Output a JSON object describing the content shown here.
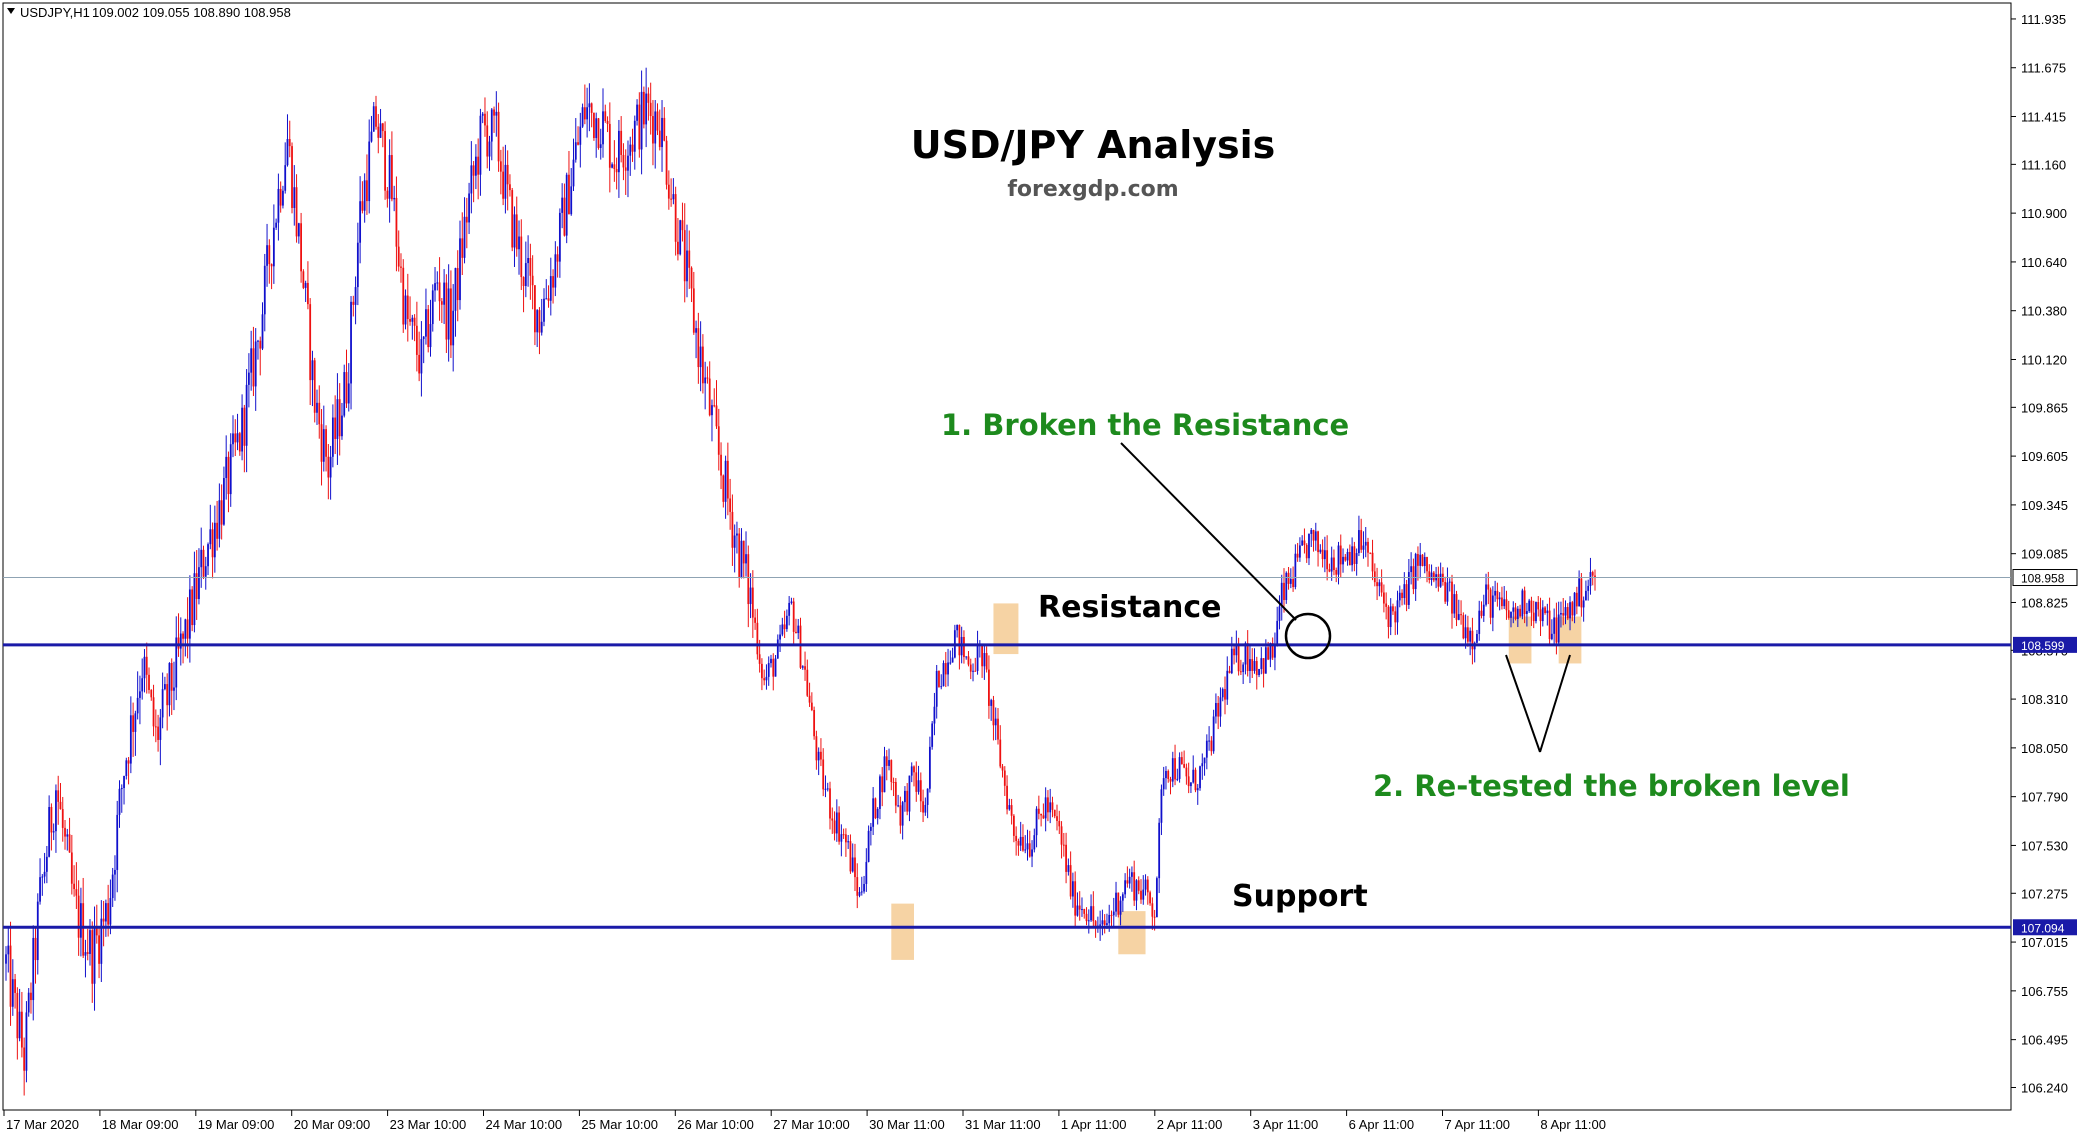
{
  "header": {
    "symbol_text": "USDJPY,H1",
    "ohlc_text": "109.002 109.055 108.890 108.958"
  },
  "annotations": {
    "title": "USD/JPY Analysis",
    "subtitle": "forexgdp.com",
    "resistance_label": "Resistance",
    "support_label": "Support",
    "broken_label": "1. Broken the Resistance",
    "retest_label": "2. Re-tested the broken level"
  },
  "colors": {
    "bull": "#1010cc",
    "bear": "#ee1111",
    "level_line": "#1a1aa8",
    "highlight": "#f6d3a4",
    "annot_green": "#1d8a1d",
    "grid_frame": "#000000"
  },
  "chart_data": {
    "type": "candlestick",
    "symbol": "USDJPY",
    "timeframe": "H1",
    "ylim": [
      106.12,
      112.02
    ],
    "y_ticks": [
      "111.935",
      "111.675",
      "111.415",
      "111.160",
      "110.900",
      "110.640",
      "110.380",
      "110.120",
      "109.865",
      "109.605",
      "109.345",
      "109.085",
      "108.825",
      "108.570",
      "108.310",
      "108.050",
      "107.790",
      "107.530",
      "107.275",
      "107.015",
      "106.755",
      "106.495",
      "106.240"
    ],
    "x_ticks": [
      "17 Mar 2020",
      "18 Mar 09:00",
      "19 Mar 09:00",
      "20 Mar 09:00",
      "23 Mar 10:00",
      "24 Mar 10:00",
      "25 Mar 10:00",
      "26 Mar 10:00",
      "27 Mar 10:00",
      "30 Mar 11:00",
      "31 Mar 11:00",
      "1 Apr 11:00",
      "2 Apr 11:00",
      "3 Apr 11:00",
      "6 Apr 11:00",
      "7 Apr 11:00",
      "8 Apr 11:00"
    ],
    "last_price": 108.958,
    "last_price_label": "108.958",
    "resistance": 108.599,
    "resistance_label": "108.599",
    "support": 107.094,
    "support_label": "107.094",
    "path_anchors": [
      [
        0,
        106.9
      ],
      [
        8,
        106.4
      ],
      [
        15,
        107.25
      ],
      [
        22,
        107.85
      ],
      [
        30,
        107.2
      ],
      [
        38,
        106.95
      ],
      [
        45,
        107.2
      ],
      [
        52,
        107.95
      ],
      [
        60,
        108.5
      ],
      [
        66,
        108.1
      ],
      [
        72,
        108.35
      ],
      [
        80,
        108.7
      ],
      [
        88,
        109.1
      ],
      [
        96,
        109.4
      ],
      [
        104,
        109.75
      ],
      [
        112,
        110.3
      ],
      [
        118,
        110.85
      ],
      [
        124,
        111.3
      ],
      [
        130,
        110.65
      ],
      [
        136,
        109.9
      ],
      [
        142,
        109.55
      ],
      [
        150,
        110.0
      ],
      [
        156,
        110.9
      ],
      [
        163,
        111.4
      ],
      [
        170,
        111.0
      ],
      [
        176,
        110.35
      ],
      [
        183,
        110.1
      ],
      [
        190,
        110.55
      ],
      [
        196,
        110.3
      ],
      [
        203,
        110.9
      ],
      [
        210,
        111.35
      ],
      [
        216,
        111.3
      ],
      [
        222,
        110.9
      ],
      [
        228,
        110.6
      ],
      [
        235,
        110.35
      ],
      [
        242,
        110.65
      ],
      [
        249,
        111.1
      ],
      [
        255,
        111.45
      ],
      [
        262,
        111.4
      ],
      [
        268,
        111.2
      ],
      [
        275,
        111.3
      ],
      [
        282,
        111.45
      ],
      [
        288,
        111.4
      ],
      [
        294,
        110.95
      ],
      [
        300,
        110.55
      ],
      [
        307,
        110.05
      ],
      [
        314,
        109.6
      ],
      [
        321,
        109.2
      ],
      [
        328,
        108.85
      ],
      [
        334,
        108.4
      ],
      [
        340,
        108.55
      ],
      [
        346,
        108.8
      ],
      [
        352,
        108.45
      ],
      [
        358,
        107.95
      ],
      [
        364,
        107.7
      ],
      [
        370,
        107.55
      ],
      [
        376,
        107.25
      ],
      [
        382,
        107.7
      ],
      [
        388,
        108.0
      ],
      [
        394,
        107.7
      ],
      [
        400,
        107.9
      ],
      [
        405,
        107.7
      ],
      [
        410,
        108.4
      ],
      [
        418,
        108.65
      ],
      [
        424,
        108.5
      ],
      [
        430,
        108.55
      ],
      [
        437,
        108.05
      ],
      [
        444,
        107.6
      ],
      [
        451,
        107.55
      ],
      [
        458,
        107.75
      ],
      [
        464,
        107.6
      ],
      [
        470,
        107.25
      ],
      [
        476,
        107.2
      ],
      [
        482,
        107.05
      ],
      [
        488,
        107.2
      ],
      [
        494,
        107.35
      ],
      [
        500,
        107.3
      ],
      [
        506,
        107.2
      ],
      [
        510,
        107.95
      ],
      [
        516,
        107.95
      ],
      [
        522,
        107.85
      ],
      [
        528,
        107.95
      ],
      [
        534,
        108.25
      ],
      [
        540,
        108.5
      ],
      [
        546,
        108.55
      ],
      [
        552,
        108.5
      ],
      [
        558,
        108.55
      ],
      [
        562,
        108.85
      ],
      [
        568,
        109.0
      ],
      [
        574,
        109.15
      ],
      [
        580,
        109.1
      ],
      [
        586,
        109.05
      ],
      [
        592,
        109.1
      ],
      [
        598,
        109.15
      ],
      [
        604,
        108.9
      ],
      [
        610,
        108.75
      ],
      [
        616,
        108.85
      ],
      [
        622,
        109.05
      ],
      [
        628,
        108.95
      ],
      [
        634,
        108.9
      ],
      [
        640,
        108.75
      ],
      [
        646,
        108.65
      ],
      [
        652,
        108.85
      ],
      [
        658,
        108.8
      ],
      [
        664,
        108.75
      ],
      [
        670,
        108.85
      ],
      [
        676,
        108.75
      ],
      [
        682,
        108.68
      ],
      [
        688,
        108.78
      ],
      [
        694,
        108.88
      ],
      [
        700,
        108.96
      ]
    ],
    "highlight_zones": [
      {
        "label": "support-touch-1",
        "x_candle": [
          390,
          400
        ],
        "y_range": [
          106.92,
          107.22
        ]
      },
      {
        "label": "resistance-touch-1",
        "x_candle": [
          435,
          446
        ],
        "y_range": [
          108.55,
          108.82
        ]
      },
      {
        "label": "support-touch-2",
        "x_candle": [
          490,
          502
        ],
        "y_range": [
          106.95,
          107.18
        ]
      },
      {
        "label": "retest-1",
        "x_candle": [
          662,
          672
        ],
        "y_range": [
          108.5,
          108.75
        ]
      },
      {
        "label": "retest-2",
        "x_candle": [
          684,
          694
        ],
        "y_range": [
          108.5,
          108.75
        ]
      }
    ],
    "title": "USD/JPY Analysis"
  }
}
